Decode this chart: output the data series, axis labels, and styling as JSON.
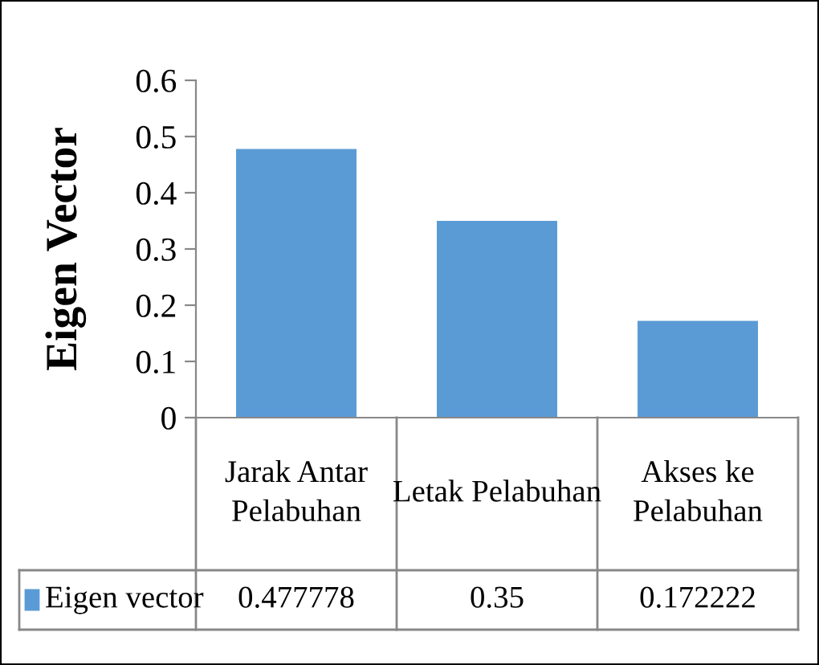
{
  "chart_data": {
    "type": "bar",
    "ylabel": "Eigen Vector",
    "categories": [
      "Jarak Antar\nPelabuhan",
      "Letak Pelabuhan",
      "Akses ke\nPelabuhan"
    ],
    "series": [
      {
        "name": "Eigen vector",
        "color": "#5b9bd5",
        "values": [
          0.477778,
          0.35,
          0.172222
        ]
      }
    ],
    "ylim": [
      0,
      0.6
    ],
    "yticks": [
      0,
      0.1,
      0.2,
      0.3,
      0.4,
      0.5,
      0.6
    ],
    "grid": false,
    "legend": "bottom",
    "data_labels": true
  }
}
